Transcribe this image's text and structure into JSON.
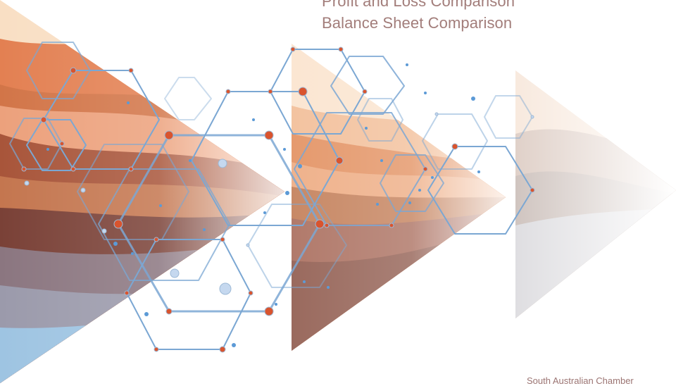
{
  "headings": {
    "line_1": "Profit and Loss Comparison",
    "line_2": "Balance Sheet Comparison"
  },
  "footer_text": "South Australian Chamber",
  "colors": {
    "heading_text": "#a27d7a",
    "footer_text": "#9b7472",
    "hexagon_line": "#7ba7d3",
    "node_red": "#d9542e",
    "node_blue": "#5c9ad6"
  },
  "decorative_graphic": "hexagon-network over layered orange-brown wave arrows"
}
